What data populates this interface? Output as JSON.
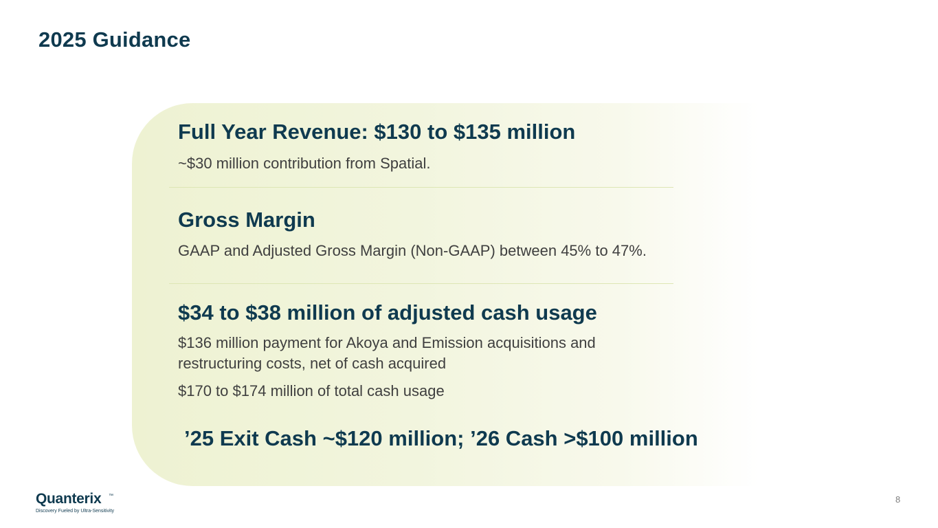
{
  "title": "2025 Guidance",
  "sections": [
    {
      "heading": "Full Year Revenue: $130 to $135 million",
      "lines": [
        "~$30 million contribution from Spatial."
      ]
    },
    {
      "heading": "Gross Margin",
      "lines": [
        "GAAP and Adjusted Gross Margin (Non-GAAP) between 45% to 47%."
      ]
    },
    {
      "heading": "$34 to $38 million of adjusted cash usage",
      "lines": [
        "$136 million payment for Akoya and Emission acquisitions and",
        "restructuring costs, net of cash acquired",
        "$170 to $174 million of total cash usage"
      ]
    }
  ],
  "exit_cash": "’25 Exit Cash ~$120 million; ’26 Cash >$100 million",
  "logo": {
    "name": "Quanterix",
    "trademark": "™",
    "tagline": "Discovery Fueled by Ultra-Sensitivity"
  },
  "page_number": "8",
  "colors": {
    "heading": "#0f3a4f",
    "body_text": "#3f3f3f",
    "panel": "#eef2d2",
    "divider": "#dde6b4"
  }
}
